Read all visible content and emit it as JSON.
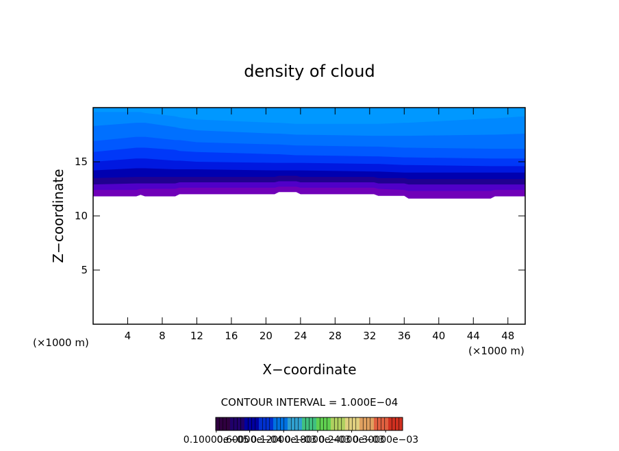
{
  "chart_data": {
    "type": "contour",
    "title": "density of cloud",
    "xlabel": "X−coordinate",
    "ylabel": "Z−coordinate",
    "x_unit_labels": [
      "(×1000 m)",
      "(×1000 m)"
    ],
    "contour_interval": "CONTOUR INTERVAL = 1.000E−04",
    "xlim": [
      0,
      50
    ],
    "ylim": [
      0,
      20
    ],
    "xticks": [
      4,
      8,
      12,
      16,
      20,
      24,
      28,
      32,
      36,
      40,
      44,
      48
    ],
    "yticks": [
      5,
      10,
      15
    ],
    "x": [
      0,
      5,
      5.5,
      6,
      9.5,
      10,
      12,
      21,
      21.5,
      23.5,
      24,
      32.5,
      33,
      36,
      36.5,
      46,
      46.5,
      50
    ],
    "series": [
      {
        "color": "#7000b8",
        "values": [
          11.8,
          11.8,
          11.95,
          11.8,
          11.8,
          12.0,
          12.0,
          12.0,
          12.2,
          12.2,
          12.0,
          12.0,
          11.85,
          11.85,
          11.6,
          11.6,
          11.8,
          11.8
        ]
      },
      {
        "color": "#5000c8",
        "values": [
          12.4,
          12.4,
          12.5,
          12.5,
          12.5,
          12.6,
          12.6,
          12.6,
          12.7,
          12.7,
          12.6,
          12.6,
          12.5,
          12.4,
          12.3,
          12.3,
          12.4,
          12.4
        ]
      },
      {
        "color": "#200090",
        "values": [
          12.9,
          13.0,
          13.0,
          13.0,
          13.0,
          13.1,
          13.1,
          13.1,
          13.2,
          13.2,
          13.1,
          13.1,
          13.0,
          13.0,
          12.9,
          12.9,
          12.9,
          12.9
        ]
      },
      {
        "color": "#0000b0",
        "values": [
          13.5,
          13.6,
          13.6,
          13.6,
          13.6,
          13.6,
          13.6,
          13.6,
          13.7,
          13.7,
          13.6,
          13.6,
          13.5,
          13.5,
          13.4,
          13.4,
          13.4,
          13.4
        ]
      },
      {
        "color": "#0018e0",
        "values": [
          14.2,
          14.4,
          14.4,
          14.4,
          14.3,
          14.3,
          14.3,
          14.2,
          14.2,
          14.2,
          14.2,
          14.1,
          14.1,
          14.0,
          14.0,
          14.0,
          14.0,
          14.0
        ]
      },
      {
        "color": "#0038f8",
        "values": [
          15.0,
          15.3,
          15.3,
          15.3,
          15.1,
          15.1,
          15.0,
          14.9,
          14.9,
          14.9,
          14.9,
          14.8,
          14.8,
          14.7,
          14.7,
          14.6,
          14.6,
          14.6
        ]
      },
      {
        "color": "#0058ff",
        "values": [
          15.9,
          16.3,
          16.3,
          16.3,
          16.1,
          16.0,
          15.9,
          15.7,
          15.7,
          15.6,
          15.6,
          15.5,
          15.5,
          15.4,
          15.4,
          15.3,
          15.3,
          15.3
        ]
      },
      {
        "color": "#0070ff",
        "values": [
          16.9,
          17.3,
          17.3,
          17.3,
          17.0,
          17.0,
          16.8,
          16.6,
          16.6,
          16.5,
          16.5,
          16.4,
          16.4,
          16.3,
          16.3,
          16.2,
          16.2,
          16.2
        ]
      },
      {
        "color": "#0088ff",
        "values": [
          18.3,
          18.6,
          18.6,
          18.6,
          18.2,
          18.1,
          17.9,
          17.6,
          17.6,
          17.5,
          17.5,
          17.4,
          17.4,
          17.4,
          17.4,
          17.5,
          17.5,
          17.6
        ]
      },
      {
        "color": "#0098ff",
        "values": [
          19.6,
          19.6,
          19.6,
          19.5,
          19.2,
          19.1,
          18.9,
          18.6,
          18.6,
          18.5,
          18.5,
          18.5,
          18.5,
          18.6,
          18.6,
          19.0,
          19.0,
          19.2
        ]
      }
    ],
    "colorbar": {
      "lim": [
        0,
        0.00033
      ],
      "colors": [
        "#300040",
        "#20006a",
        "#0000a0",
        "#0030d0",
        "#0070e0",
        "#30a0d0",
        "#40c080",
        "#60d050",
        "#b0d060",
        "#e0d080",
        "#e0a060",
        "#e06040",
        "#d03020"
      ],
      "ticks": [
        {
          "value": 1e-06,
          "label": "0.10000e−05"
        },
        {
          "value": 6e-05,
          "label": "0.60000e−04"
        },
        {
          "value": 0.00012,
          "label": "0.12000e−03"
        },
        {
          "value": 0.00018,
          "label": "0.18000e−03"
        },
        {
          "value": 0.00024,
          "label": "0.24000e−03"
        },
        {
          "value": 0.0003,
          "label": "0.30000e−03"
        }
      ]
    }
  }
}
